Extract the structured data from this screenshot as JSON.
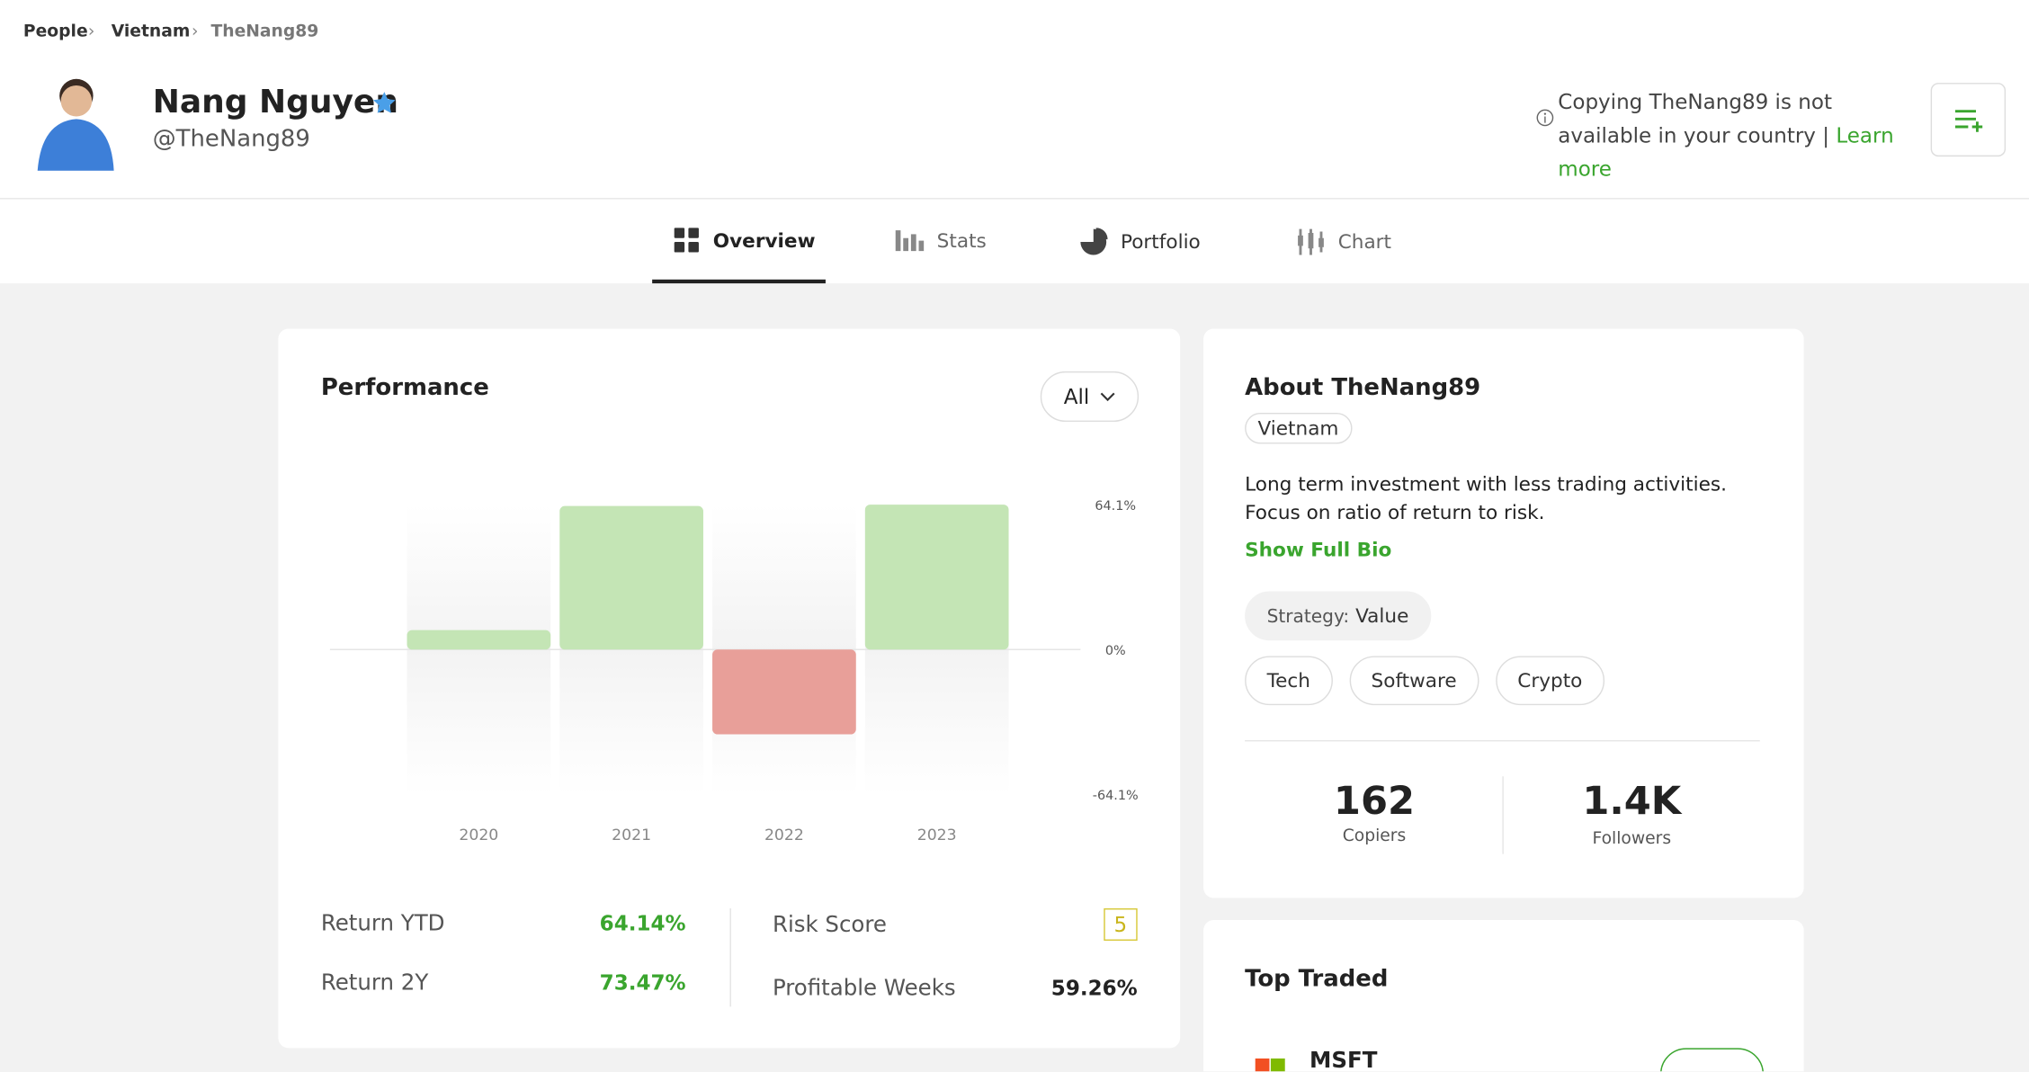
{
  "breadcrumb": [
    "People",
    "Vietnam",
    "TheNang89"
  ],
  "profile": {
    "name": "Nang Nguyen",
    "handle": "@TheNang89"
  },
  "notice": {
    "text": "Copying TheNang89 is not available in your country |",
    "link": "Learn more"
  },
  "tabs": [
    "Overview",
    "Stats",
    "Portfolio",
    "Chart"
  ],
  "performance": {
    "title": "Performance",
    "period": "All",
    "stats": [
      {
        "label": "Return YTD",
        "value": "64.14%"
      },
      {
        "label": "Return 2Y",
        "value": "73.47%"
      },
      {
        "label": "Risk Score",
        "value": "5"
      },
      {
        "label": "Profitable Weeks",
        "value": "59.26%"
      }
    ]
  },
  "chart_data": {
    "type": "bar",
    "categories": [
      "2020",
      "2021",
      "2022",
      "2023"
    ],
    "values": [
      8.6,
      63.5,
      -37.5,
      64.1
    ],
    "ylim": [
      -64.1,
      64.1
    ],
    "yticks": [
      {
        "value": -64.1,
        "label": "-64.1%"
      },
      {
        "value": 0,
        "label": "0%"
      },
      {
        "value": 64.1,
        "label": "64.1%"
      }
    ],
    "positive_color": "#c4e5b5",
    "negative_color": "#e89f99"
  },
  "about": {
    "title": "About TheNang89",
    "country": "Vietnam",
    "bio": "Long term investment with less trading activities. Focus on ratio of return to risk.",
    "show_bio": "Show Full Bio",
    "strategy_label": "Strategy:",
    "strategy": "Value",
    "tags": [
      "Tech",
      "Software",
      "Crypto"
    ],
    "copiers": {
      "value": "162",
      "label": "Copiers"
    },
    "followers": {
      "value": "1.4K",
      "label": "Followers"
    }
  },
  "top_traded": {
    "title": "Top Traded",
    "items": [
      "MSFT"
    ]
  }
}
